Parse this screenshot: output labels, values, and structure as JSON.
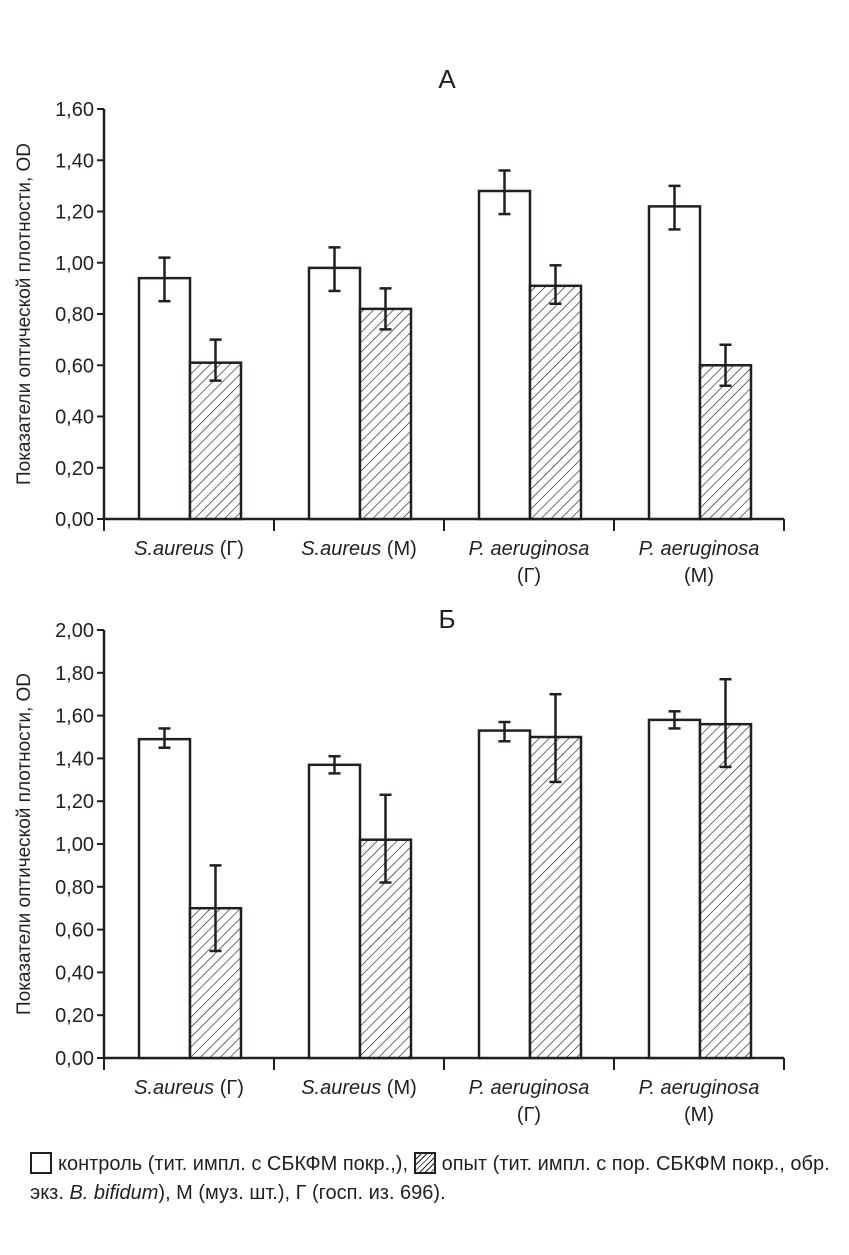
{
  "chart_data": [
    {
      "type": "bar",
      "title": "А",
      "ylabel": "Показатели оптической плотности, OD",
      "ylim": [
        0,
        1.6
      ],
      "yticks": [
        "0,00",
        "0,20",
        "0,40",
        "0,60",
        "0,80",
        "1,00",
        "1,20",
        "1,40",
        "1,60"
      ],
      "categories": [
        {
          "italic": "S.aureus",
          "rest": " (Г)",
          "line2": ""
        },
        {
          "italic": "S.aureus",
          "rest": " (М)",
          "line2": ""
        },
        {
          "italic": "P. aeruginosa",
          "rest": "",
          "line2": "(Г)"
        },
        {
          "italic": "P. aeruginosa",
          "rest": "",
          "line2": "(М)"
        }
      ],
      "series": [
        {
          "name": "контроль",
          "values": [
            0.94,
            0.98,
            1.28,
            1.22
          ],
          "err_low": [
            0.85,
            0.89,
            1.19,
            1.13
          ],
          "err_high": [
            1.02,
            1.06,
            1.36,
            1.3
          ]
        },
        {
          "name": "опыт",
          "values": [
            0.61,
            0.82,
            0.91,
            0.6
          ],
          "err_low": [
            0.54,
            0.74,
            0.84,
            0.52
          ],
          "err_high": [
            0.7,
            0.9,
            0.99,
            0.68
          ]
        }
      ]
    },
    {
      "type": "bar",
      "title": "Б",
      "ylabel": "Показатели оптической плотности, OD",
      "ylim": [
        0,
        2.0
      ],
      "yticks": [
        "0,00",
        "0,20",
        "0,40",
        "0,60",
        "0,80",
        "1,00",
        "1,20",
        "1,40",
        "1,60",
        "1,80",
        "2,00"
      ],
      "categories": [
        {
          "italic": "S.aureus",
          "rest": " (Г)",
          "line2": ""
        },
        {
          "italic": "S.aureus",
          "rest": " (М)",
          "line2": ""
        },
        {
          "italic": "P. aeruginosa",
          "rest": "",
          "line2": "(Г)"
        },
        {
          "italic": "P. aeruginosa",
          "rest": "",
          "line2": "(М)"
        }
      ],
      "series": [
        {
          "name": "контроль",
          "values": [
            1.49,
            1.37,
            1.53,
            1.58
          ],
          "err_low": [
            1.45,
            1.33,
            1.48,
            1.54
          ],
          "err_high": [
            1.54,
            1.41,
            1.57,
            1.62
          ]
        },
        {
          "name": "опыт",
          "values": [
            0.7,
            1.02,
            1.5,
            1.56
          ],
          "err_low": [
            0.5,
            0.82,
            1.29,
            1.36
          ],
          "err_high": [
            0.9,
            1.23,
            1.7,
            1.77
          ]
        }
      ]
    }
  ],
  "legend": {
    "control": "контроль (тит. импл. с СБКФМ покр.,),",
    "experiment_a": "опыт (тит. импл. с пор. СБКФМ покр., обр. экз.",
    "experiment_italic": "B. bifidum",
    "experiment_b": "), М (муз. шт.), Г (госп. из. 696)."
  },
  "colors": {
    "ink": "#231f20",
    "background": "#ffffff"
  }
}
